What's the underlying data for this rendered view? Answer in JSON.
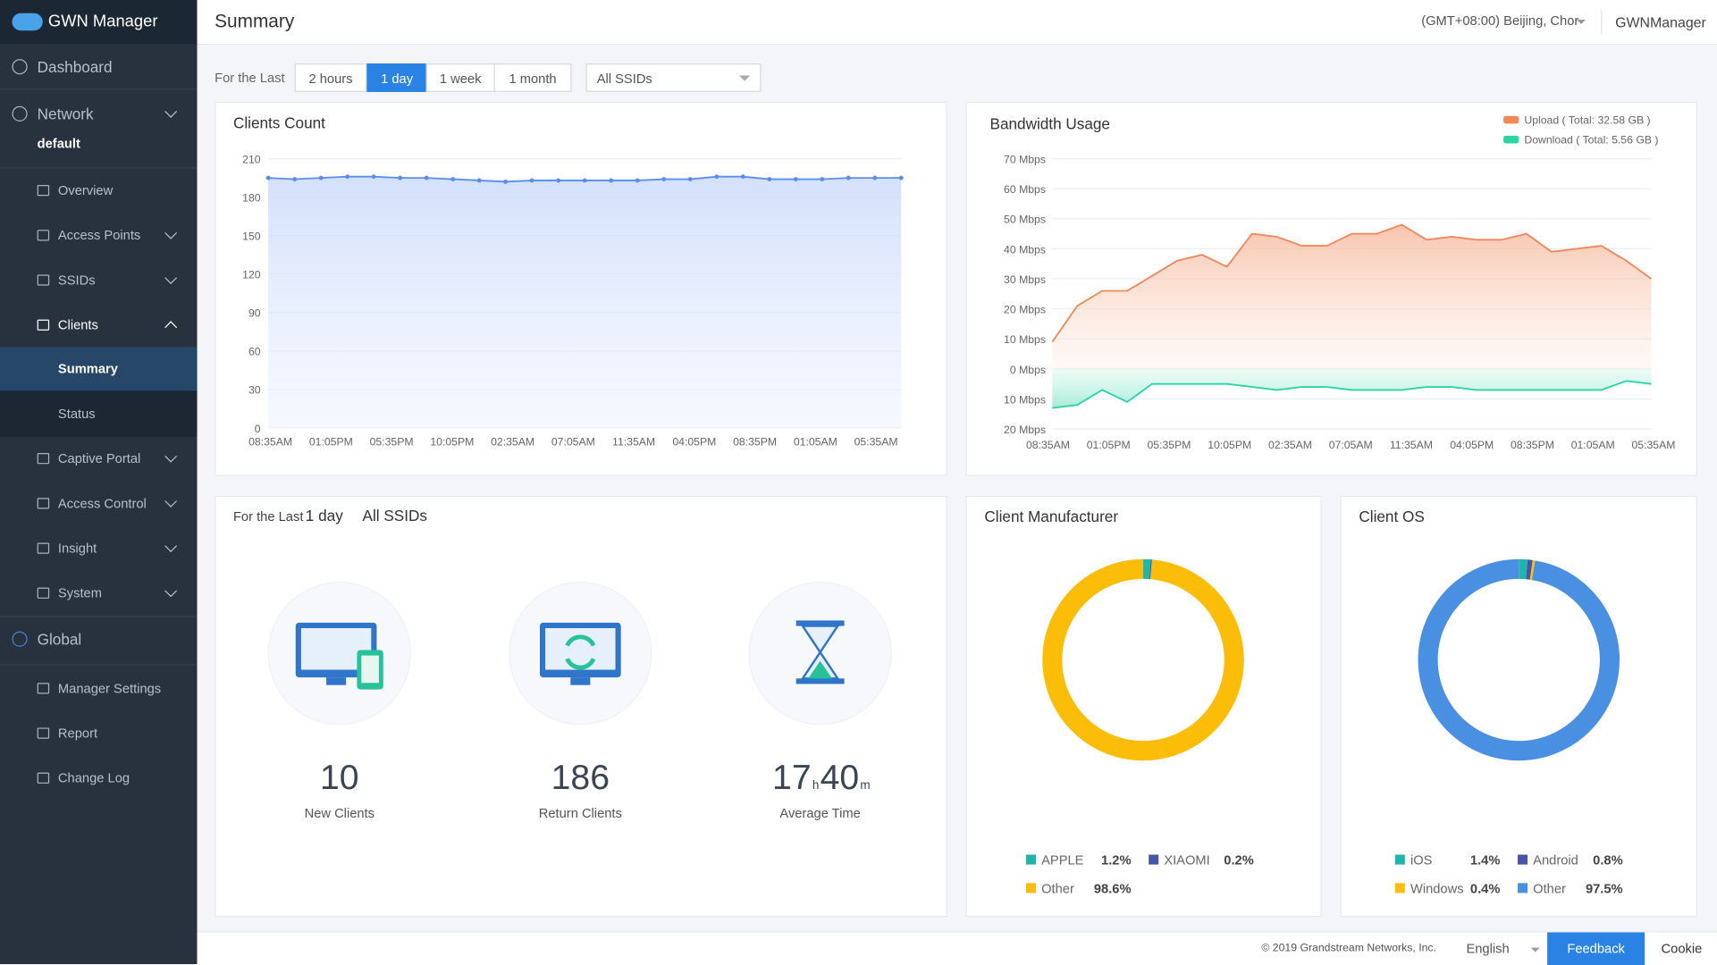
{
  "brand": "GWN Manager",
  "header": {
    "title": "Summary",
    "timezone": "(GMT+08:00) Beijing, Chor",
    "user": "GWNManager"
  },
  "sidebar": {
    "items": [
      "Dashboard",
      "Network",
      "default",
      "Overview",
      "Access Points",
      "SSIDs",
      "Clients",
      "Summary",
      "Status",
      "Captive Portal",
      "Access Control",
      "Insight",
      "System",
      "Global",
      "Manager Settings",
      "Report",
      "Change Log"
    ]
  },
  "filter": {
    "label": "For the Last",
    "ranges": [
      "2 hours",
      "1 day",
      "1 week",
      "1 month"
    ],
    "ssid": "All SSIDs"
  },
  "clients_chart": {
    "type": "line",
    "title": "Clients Count",
    "color": "#5b8def",
    "xlabels": [
      "08:35AM",
      "01:05PM",
      "05:35PM",
      "10:05PM",
      "02:35AM",
      "07:05AM",
      "11:35AM",
      "04:05PM",
      "08:35PM",
      "01:05AM",
      "05:35AM"
    ],
    "values": [
      195,
      194,
      195,
      196,
      196,
      195,
      195,
      194,
      193,
      192,
      193,
      193,
      193,
      193,
      193,
      194,
      194,
      196,
      196,
      194,
      194,
      194,
      195,
      195,
      195
    ],
    "ylim": [
      0,
      210
    ],
    "yticks": [
      0,
      30,
      60,
      90,
      120,
      150,
      180,
      210
    ],
    "grid": true
  },
  "bandwidth_chart": {
    "type": "area",
    "title": "Bandwidth Usage",
    "xlabels": [
      "08:35AM",
      "01:05PM",
      "05:35PM",
      "10:05PM",
      "02:35AM",
      "07:05AM",
      "11:35AM",
      "04:05PM",
      "08:35PM",
      "01:05AM",
      "05:35AM"
    ],
    "series": [
      {
        "name": "Upload ( Total: 32.58 GB )",
        "color": "#f0885a",
        "values": [
          9,
          21,
          26,
          26,
          31,
          36,
          38,
          34,
          45,
          44,
          41,
          41,
          45,
          45,
          48,
          43,
          44,
          43,
          43,
          45,
          39,
          40,
          41,
          36,
          30
        ]
      },
      {
        "name": "Download ( Total: 5.56 GB )",
        "color": "#2ed3a6",
        "values": [
          -13,
          -12,
          -7,
          -11,
          -5,
          -5,
          -5,
          -5,
          -6,
          -7,
          -6,
          -6,
          -7,
          -7,
          -7,
          -6,
          -6,
          -7,
          -7,
          -7,
          -7,
          -7,
          -7,
          -4,
          -5
        ]
      }
    ],
    "ylim": [
      -20,
      70
    ],
    "yticks": [
      {
        "value": -20,
        "label": "20 Mbps"
      },
      {
        "value": -10,
        "label": "10 Mbps"
      },
      {
        "value": 0,
        "label": "0 Mbps"
      },
      {
        "value": 10,
        "label": "10 Mbps"
      },
      {
        "value": 20,
        "label": "20 Mbps"
      },
      {
        "value": 30,
        "label": "30 Mbps"
      },
      {
        "value": 40,
        "label": "40 Mbps"
      },
      {
        "value": 50,
        "label": "50 Mbps"
      },
      {
        "value": 60,
        "label": "60 Mbps"
      },
      {
        "value": 70,
        "label": "70 Mbps"
      }
    ],
    "grid": true,
    "legend": "top-right"
  },
  "stats": [
    {
      "value": 10,
      "label": "New Clients"
    },
    {
      "value": 186,
      "label": "Return Clients"
    },
    {
      "hours": 17,
      "hour_unit": "h",
      "minutes": 40,
      "minute_unit": "m",
      "label": "Average Time"
    }
  ],
  "manufacturer_chart": {
    "type": "donut",
    "title": "Client Manufacturer",
    "categories": [
      "APPLE",
      "XIAOMI",
      "Other"
    ],
    "values": [
      1.2,
      0.2,
      98.6
    ],
    "value_labels": [
      "1.2%",
      "0.2%",
      "98.6%"
    ],
    "colors": [
      "#1fb5ac",
      "#4556a8",
      "#fbbd07"
    ]
  },
  "os_chart": {
    "type": "donut",
    "title": "Client OS",
    "categories": [
      "iOS",
      "Android",
      "Windows",
      "Other"
    ],
    "values": [
      1.4,
      0.8,
      0.4,
      97.5
    ],
    "value_labels": [
      "1.4%",
      "0.8%",
      "0.4%",
      "97.5%"
    ],
    "colors": [
      "#1fb5ac",
      "#4556a8",
      "#fbbd07",
      "#4a90e2"
    ]
  },
  "footer": {
    "copyright": "© 2019 Grandstream Networks, Inc.",
    "language": "English",
    "feedback": "Feedback",
    "cookie": "Cookie"
  }
}
